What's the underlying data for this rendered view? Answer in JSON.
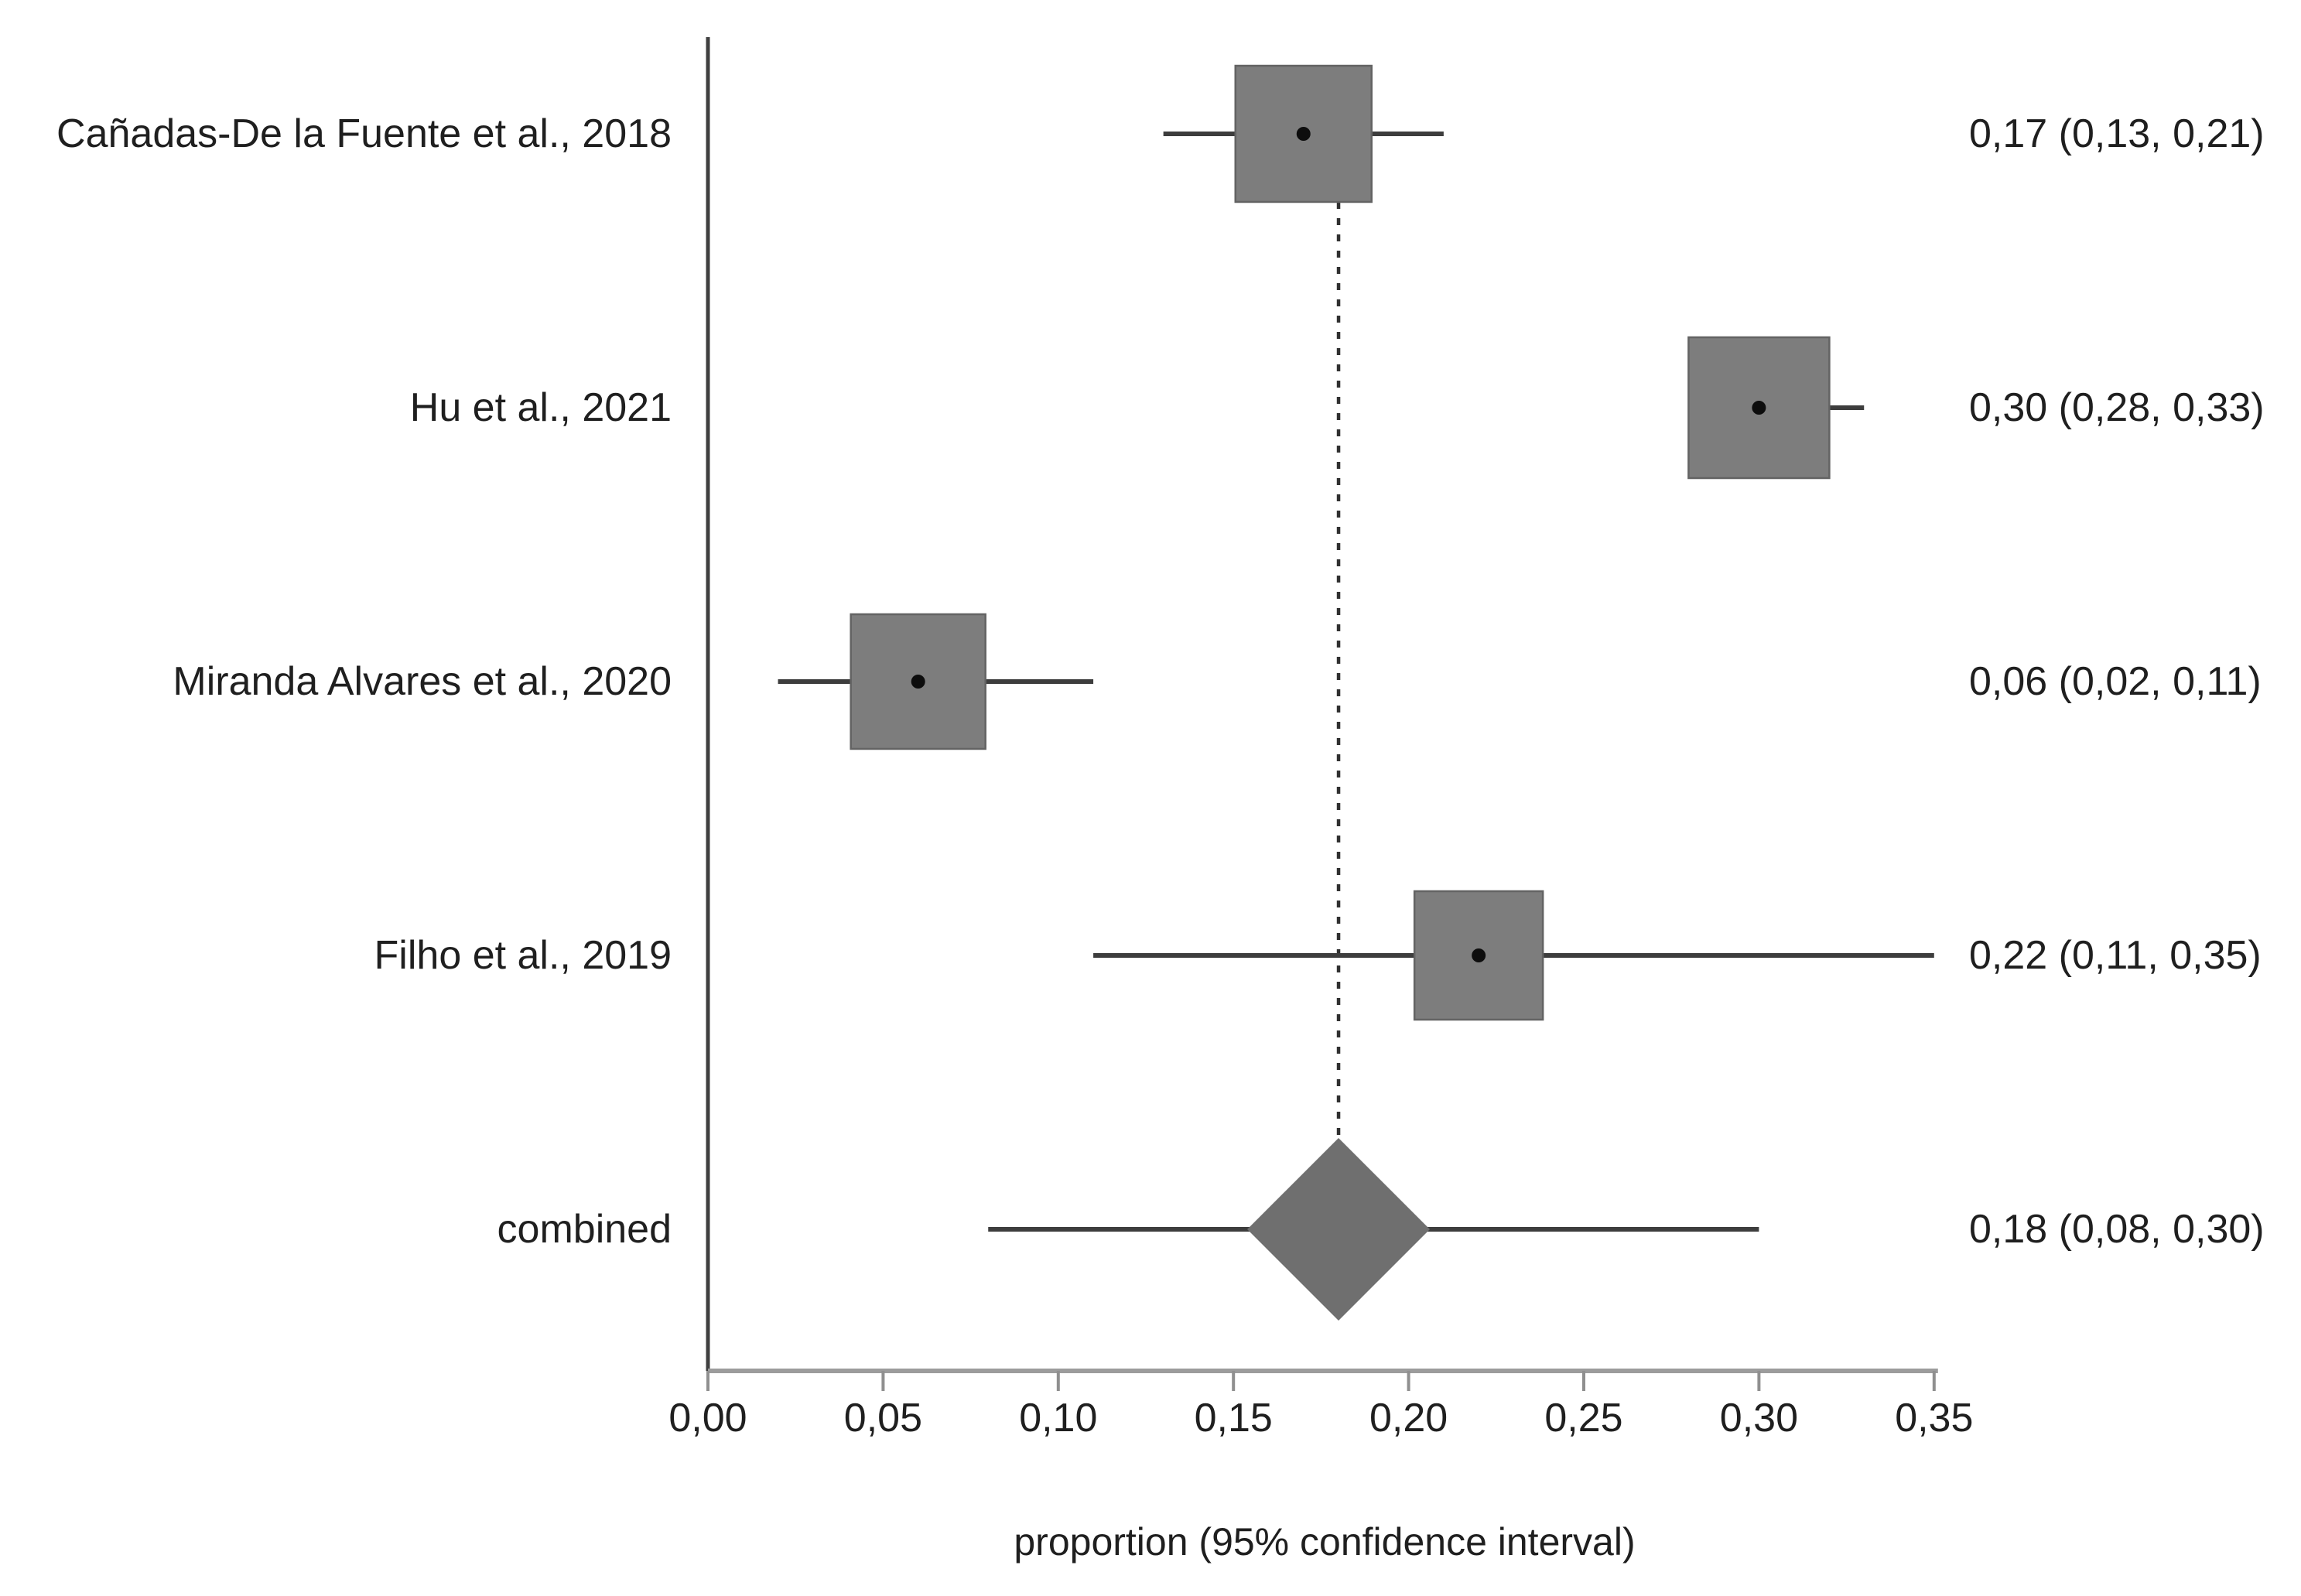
{
  "chart_data": {
    "type": "forest",
    "title": "",
    "xlabel": "proportion (95% confidence interval)",
    "ylabel": "",
    "xlim": [
      0,
      0.35
    ],
    "x_tick_values": [
      0,
      0.05,
      0.1,
      0.15,
      0.2,
      0.25,
      0.3,
      0.35
    ],
    "x_tick_labels": [
      "0,00",
      "0,05",
      "0,10",
      "0,15",
      "0,20",
      "0,25",
      "0,30",
      "0,35"
    ],
    "decimal_separator": ",",
    "grid": false,
    "legend_position": "none",
    "reference_line_value": 0.18,
    "reference_line_style": "dashed",
    "studies": [
      {
        "label": "Cañadas-De la Fuente et al., 2018",
        "est": 0.17,
        "lo": 0.13,
        "hi": 0.21,
        "annotation": "0,17 (0,13, 0,21)",
        "marker": "square",
        "marker_half_px": 88
      },
      {
        "label": "Hu et al., 2021",
        "est": 0.3,
        "lo": 0.28,
        "hi": 0.33,
        "annotation": "0,30 (0,28, 0,33)",
        "marker": "square",
        "marker_half_px": 91
      },
      {
        "label": "Miranda Alvares et al., 2020",
        "est": 0.06,
        "lo": 0.02,
        "hi": 0.11,
        "annotation": "0,06 (0,02, 0,11)",
        "marker": "square",
        "marker_half_px": 87
      },
      {
        "label": "Filho et al., 2019",
        "est": 0.22,
        "lo": 0.11,
        "hi": 0.35,
        "annotation": "0,22 (0,11, 0,35)",
        "marker": "square",
        "marker_half_px": 83
      },
      {
        "label": "combined",
        "est": 0.18,
        "lo": 0.08,
        "hi": 0.3,
        "annotation": "0,18 (0,08, 0,30)",
        "marker": "diamond",
        "marker_half_px": 118
      }
    ],
    "colors": {
      "background": "#ffffff",
      "box_fill": "#7d7d7d",
      "box_stroke": "#636363",
      "diamond_fill": "#6f6f6f",
      "ci_line": "#3d3d3d",
      "point_dot": "#0d0d0d",
      "axis_horizontal": "#9c9c9c",
      "axis_vertical": "#3f3f3f",
      "tick": "#8f8f8f",
      "text": "#1f1f1f",
      "reference_line": "#303030"
    }
  }
}
